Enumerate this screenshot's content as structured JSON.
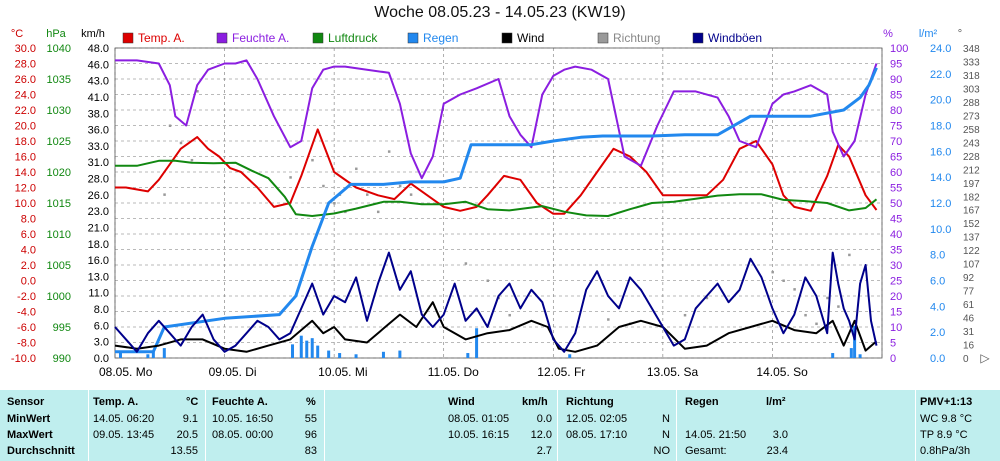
{
  "title": "Woche 08.05.23 - 14.05.23 (KW19)",
  "axis_units": {
    "temp": "°C",
    "pressure": "hPa",
    "wind": "km/h",
    "humidity": "%",
    "rain": "l/m²",
    "direction": "°"
  },
  "legend": [
    {
      "label": "Temp. A.",
      "color": "#dd0000"
    },
    {
      "label": "Feuchte A.",
      "color": "#8b1ee0"
    },
    {
      "label": "Luftdruck",
      "color": "#118811"
    },
    {
      "label": "Regen",
      "color": "#2288ee"
    },
    {
      "label": "Wind",
      "color": "#000000"
    },
    {
      "label": "Richtung",
      "color": "#9a9a9a"
    },
    {
      "label": "Windböen",
      "color": "#00008b"
    }
  ],
  "chart_data": {
    "type": "line",
    "x_labels": [
      "08.05. Mo",
      "09.05. Di",
      "10.05. Mi",
      "11.05. Do",
      "12.05. Fr",
      "13.05. Sa",
      "14.05. So"
    ],
    "axes": {
      "temp": {
        "min": -10,
        "max": 30,
        "ticks": [
          "30.0",
          "28.0",
          "26.0",
          "24.0",
          "22.0",
          "20.0",
          "18.0",
          "16.0",
          "14.0",
          "12.0",
          "10.0",
          "8.0",
          "6.0",
          "4.0",
          "2.0",
          "0.0",
          "-2.0",
          "-4.0",
          "-6.0",
          "-8.0",
          "-10.0"
        ]
      },
      "pressure": {
        "min": 990,
        "max": 1040,
        "ticks": [
          "1040",
          "1035",
          "1030",
          "1025",
          "1020",
          "1015",
          "1010",
          "1005",
          "1000",
          "995",
          "990"
        ]
      },
      "wind": {
        "min": 0,
        "max": 50,
        "ticks": [
          "48.0",
          "46.0",
          "43.0",
          "41.0",
          "38.0",
          "36.0",
          "33.0",
          "31.0",
          "28.0",
          "26.0",
          "23.0",
          "21.0",
          "18.0",
          "16.0",
          "13.0",
          "11.0",
          "8.0",
          "6.0",
          "3.0",
          "0.0"
        ]
      },
      "humidity": {
        "min": 0,
        "max": 100,
        "ticks": [
          "100",
          "95",
          "90",
          "85",
          "80",
          "75",
          "70",
          "65",
          "60",
          "55",
          "50",
          "45",
          "40",
          "35",
          "30",
          "25",
          "20",
          "15",
          "10",
          "5",
          "0"
        ]
      },
      "rain": {
        "min": 0,
        "max": 25,
        "ticks": [
          "24.0",
          "22.0",
          "20.0",
          "18.0",
          "16.0",
          "14.0",
          "12.0",
          "10.0",
          "8.0",
          "6.0",
          "4.0",
          "2.0",
          "0.0"
        ]
      },
      "direction": {
        "min": 0,
        "max": 360,
        "ticks": [
          "348",
          "333",
          "318",
          "303",
          "288",
          "273",
          "258",
          "243",
          "228",
          "212",
          "197",
          "182",
          "167",
          "152",
          "137",
          "122",
          "107",
          "92",
          "77",
          "61",
          "46",
          "31",
          "16",
          "0"
        ]
      }
    },
    "series": [
      {
        "name": "Temp. A.",
        "axis": "temp",
        "color": "#dd0000",
        "x": [
          0,
          0.1,
          0.3,
          0.4,
          0.5,
          0.6,
          0.75,
          0.85,
          0.95,
          1.05,
          1.15,
          1.3,
          1.45,
          1.6,
          1.7,
          1.85,
          2.0,
          2.2,
          2.4,
          2.55,
          2.7,
          2.85,
          3.0,
          3.15,
          3.3,
          3.4,
          3.55,
          3.7,
          3.85,
          4.0,
          4.1,
          4.25,
          4.4,
          4.55,
          4.7,
          4.85,
          5.0,
          5.2,
          5.4,
          5.55,
          5.7,
          5.85,
          6.0,
          6.1,
          6.2,
          6.35,
          6.5,
          6.6,
          6.7,
          6.85,
          6.95
        ],
        "y": [
          12,
          12,
          11.5,
          13,
          15,
          17,
          18.5,
          17,
          16,
          14.5,
          14,
          12,
          9.5,
          10,
          13.5,
          19.5,
          14,
          12,
          11,
          10.5,
          12.5,
          11,
          9.5,
          9,
          9.5,
          11,
          13.5,
          13,
          10,
          8.6,
          8.6,
          11,
          14,
          17,
          16,
          14,
          11,
          11,
          11,
          13,
          17,
          18,
          15,
          11,
          9.5,
          9,
          13.5,
          17.5,
          16,
          11,
          9.1
        ]
      },
      {
        "name": "Feuchte A.",
        "axis": "humidity",
        "color": "#8b1ee0",
        "x": [
          0,
          0.2,
          0.4,
          0.5,
          0.55,
          0.65,
          0.75,
          0.85,
          1.0,
          1.1,
          1.2,
          1.3,
          1.45,
          1.6,
          1.7,
          1.8,
          1.9,
          2.0,
          2.1,
          2.3,
          2.5,
          2.6,
          2.7,
          2.8,
          2.9,
          3.0,
          3.15,
          3.3,
          3.5,
          3.6,
          3.7,
          3.8,
          3.9,
          4.0,
          4.1,
          4.2,
          4.35,
          4.5,
          4.65,
          4.8,
          4.95,
          5.1,
          5.3,
          5.5,
          5.6,
          5.7,
          5.85,
          6.0,
          6.1,
          6.2,
          6.35,
          6.5,
          6.55,
          6.65,
          6.75,
          6.85,
          6.95
        ],
        "y": [
          96,
          96,
          95,
          88,
          78,
          75,
          88,
          93,
          95,
          95,
          96,
          90,
          78,
          68,
          70,
          87,
          93,
          94,
          94,
          93,
          92,
          82,
          66,
          58,
          65,
          82,
          85,
          87,
          90,
          78,
          72,
          68,
          85,
          91,
          93,
          94,
          93,
          90,
          65,
          62,
          75,
          86,
          86,
          84,
          78,
          70,
          68,
          82,
          85,
          86,
          88,
          85,
          73,
          65,
          70,
          85,
          95
        ]
      },
      {
        "name": "Luftdruck",
        "axis": "pressure",
        "color": "#118811",
        "x": [
          0,
          0.2,
          0.4,
          0.55,
          0.7,
          0.9,
          1.1,
          1.25,
          1.4,
          1.55,
          1.65,
          1.8,
          2.0,
          2.2,
          2.45,
          2.6,
          2.8,
          3.0,
          3.2,
          3.4,
          3.6,
          3.9,
          4.1,
          4.3,
          4.5,
          4.7,
          4.9,
          5.1,
          5.3,
          5.5,
          5.7,
          5.9,
          6.1,
          6.3,
          6.5,
          6.7,
          6.85,
          6.95
        ],
        "y": [
          1021,
          1021,
          1021.8,
          1021.8,
          1021.5,
          1021.4,
          1021.5,
          1020.2,
          1019,
          1016,
          1013.2,
          1012.9,
          1013.3,
          1014.1,
          1015.2,
          1015.2,
          1014.8,
          1014.8,
          1015.2,
          1014,
          1013.8,
          1014.5,
          1013.6,
          1013,
          1012.9,
          1014,
          1015,
          1015.2,
          1015.7,
          1016.2,
          1016.4,
          1016.4,
          1015.5,
          1015.3,
          1015,
          1013.8,
          1014.2,
          1015.6
        ]
      },
      {
        "name": "Regen",
        "axis": "rain",
        "color": "#2288ee",
        "x": [
          0,
          0.35,
          0.45,
          1.0,
          1.5,
          1.65,
          1.8,
          1.95,
          2.15,
          2.45,
          2.7,
          3.0,
          3.15,
          3.25,
          3.8,
          4.0,
          4.25,
          4.45,
          4.9,
          5.2,
          5.5,
          5.8,
          6.0,
          6.35,
          6.65,
          6.8,
          6.88,
          6.95
        ],
        "y": [
          0.5,
          0.5,
          2.5,
          3.2,
          3.5,
          5,
          9,
          12.5,
          14,
          14,
          14.2,
          14.2,
          14.5,
          17.2,
          17.2,
          17.5,
          17.8,
          17.9,
          17.9,
          18,
          18,
          19.5,
          19.5,
          19.5,
          20,
          21,
          22,
          23.4
        ]
      },
      {
        "name": "Wind",
        "axis": "wind",
        "color": "#000000",
        "x": [
          0,
          0.2,
          0.4,
          0.6,
          0.8,
          1.0,
          1.2,
          1.4,
          1.6,
          1.8,
          1.9,
          2.0,
          2.1,
          2.3,
          2.5,
          2.6,
          2.75,
          2.9,
          3.0,
          3.2,
          3.4,
          3.6,
          3.8,
          3.95,
          4.05,
          4.2,
          4.4,
          4.6,
          4.8,
          5.0,
          5.2,
          5.4,
          5.6,
          5.8,
          6.0,
          6.2,
          6.4,
          6.55,
          6.65,
          6.75,
          6.85,
          6.95
        ],
        "y": [
          2,
          1.5,
          2,
          3,
          3,
          1.5,
          1,
          2,
          3,
          6,
          4,
          5,
          3,
          2.5,
          5.5,
          7,
          5,
          9,
          5,
          3,
          4,
          4.5,
          6,
          5,
          1.5,
          1,
          2,
          5,
          6,
          5,
          1.5,
          2,
          4,
          5,
          6,
          4.5,
          4,
          6,
          2,
          6,
          1.2,
          2.7
        ]
      },
      {
        "name": "Windböen",
        "axis": "wind",
        "color": "#00008b",
        "x": [
          0,
          0.1,
          0.2,
          0.3,
          0.4,
          0.5,
          0.6,
          0.7,
          0.8,
          0.9,
          1.0,
          1.1,
          1.2,
          1.3,
          1.4,
          1.5,
          1.6,
          1.7,
          1.8,
          1.9,
          2.0,
          2.1,
          2.2,
          2.3,
          2.4,
          2.5,
          2.6,
          2.7,
          2.8,
          2.9,
          3.0,
          3.1,
          3.2,
          3.3,
          3.4,
          3.5,
          3.6,
          3.7,
          3.8,
          3.9,
          4.0,
          4.1,
          4.2,
          4.3,
          4.4,
          4.5,
          4.6,
          4.7,
          4.8,
          4.9,
          5.0,
          5.1,
          5.2,
          5.3,
          5.4,
          5.5,
          5.6,
          5.7,
          5.8,
          5.9,
          6.0,
          6.1,
          6.2,
          6.3,
          6.4,
          6.5,
          6.55,
          6.6,
          6.65,
          6.7,
          6.75,
          6.8,
          6.85,
          6.9,
          6.95
        ],
        "y": [
          5,
          3,
          1,
          4,
          6,
          4,
          2,
          5,
          7,
          3,
          1,
          2,
          4,
          6,
          5,
          3,
          4,
          8,
          12,
          7,
          10,
          9,
          13,
          6,
          12,
          17,
          11,
          14,
          7,
          5,
          7,
          12,
          6,
          8,
          5,
          10,
          12,
          8,
          11,
          9,
          3,
          1,
          4,
          11,
          14,
          10,
          8,
          13,
          11,
          8,
          5,
          2,
          3,
          8,
          10,
          12,
          9,
          11,
          16,
          13,
          8,
          4,
          7,
          13,
          10,
          4,
          17,
          12,
          8,
          6,
          3,
          12,
          15,
          6,
          2
        ]
      }
    ],
    "rain_bars": {
      "axis": "rain",
      "color": "#2288ee",
      "x": [
        0.05,
        0.3,
        0.35,
        0.45,
        1.62,
        1.7,
        1.75,
        1.8,
        1.85,
        1.95,
        2.05,
        2.2,
        2.45,
        2.6,
        3.22,
        3.3,
        4.15,
        6.55,
        6.72,
        6.75,
        6.8
      ],
      "values": [
        0.6,
        0.3,
        0.5,
        0.8,
        1.1,
        1.8,
        1.4,
        1.6,
        1.0,
        0.6,
        0.4,
        0.3,
        0.5,
        0.6,
        0.4,
        2.4,
        0.3,
        0.4,
        0.8,
        2.6,
        0.3
      ]
    },
    "direction_points": {
      "axis": "direction",
      "color": "#9a9a9a",
      "x": [
        0.45,
        0.5,
        0.6,
        0.7,
        0.75,
        1.6,
        1.8,
        1.9,
        2.0,
        2.05,
        2.1,
        2.2,
        2.3,
        2.4,
        2.5,
        2.6,
        2.7,
        3.2,
        3.4,
        3.5,
        3.6,
        4.5,
        4.6,
        4.7,
        5.2,
        5.4,
        6.0,
        6.1,
        6.2,
        6.3,
        6.4,
        6.5,
        6.6,
        6.7
      ],
      "values": [
        190,
        270,
        250,
        230,
        310,
        210,
        230,
        200,
        180,
        190,
        170,
        220,
        190,
        170,
        240,
        200,
        190,
        110,
        90,
        70,
        50,
        45,
        60,
        40,
        50,
        70,
        100,
        90,
        80,
        50,
        40,
        70,
        60,
        120
      ]
    },
    "grid": true,
    "legend_position": "top"
  },
  "stats": {
    "headers": {
      "sensor": "Sensor",
      "temp": "Temp. A.",
      "temp_unit": "°C",
      "humidity": "Feuchte A.",
      "humidity_unit": "%",
      "wind": "Wind",
      "wind_unit": "km/h",
      "direction": "Richtung",
      "rain": "Regen",
      "rain_unit": "l/m²",
      "pmv": "PMV+1:13"
    },
    "rows": [
      {
        "label": "MinWert",
        "temp_time": "14.05.  06:20",
        "temp_val": "9.1",
        "hum_time": "10.05.  16:50",
        "hum_val": "55",
        "wind_time": "08.05.  01:05",
        "wind_val": "0.0",
        "dir_time": "12.05.  02:05",
        "dir_val": "N",
        "rain_time": "",
        "rain_val": "",
        "pmv": "WC 9.8 °C"
      },
      {
        "label": "MaxWert",
        "temp_time": "09.05.  13:45",
        "temp_val": "20.5",
        "hum_time": "08.05.  00:00",
        "hum_val": "96",
        "wind_time": "10.05.  16:15",
        "wind_val": "12.0",
        "dir_time": "08.05.  17:10",
        "dir_val": "N",
        "rain_time": "14.05.  21:50",
        "rain_val": "3.0",
        "pmv": "TP 8.9 °C"
      },
      {
        "label": "Durchschnitt",
        "temp_time": "",
        "temp_val": "13.55",
        "hum_time": "",
        "hum_val": "83",
        "wind_time": "",
        "wind_val": "2.7",
        "dir_time": "",
        "dir_val": "NO",
        "rain_time": "Gesamt:",
        "rain_val": "23.4",
        "pmv": "0.8hPa/3h"
      }
    ]
  }
}
